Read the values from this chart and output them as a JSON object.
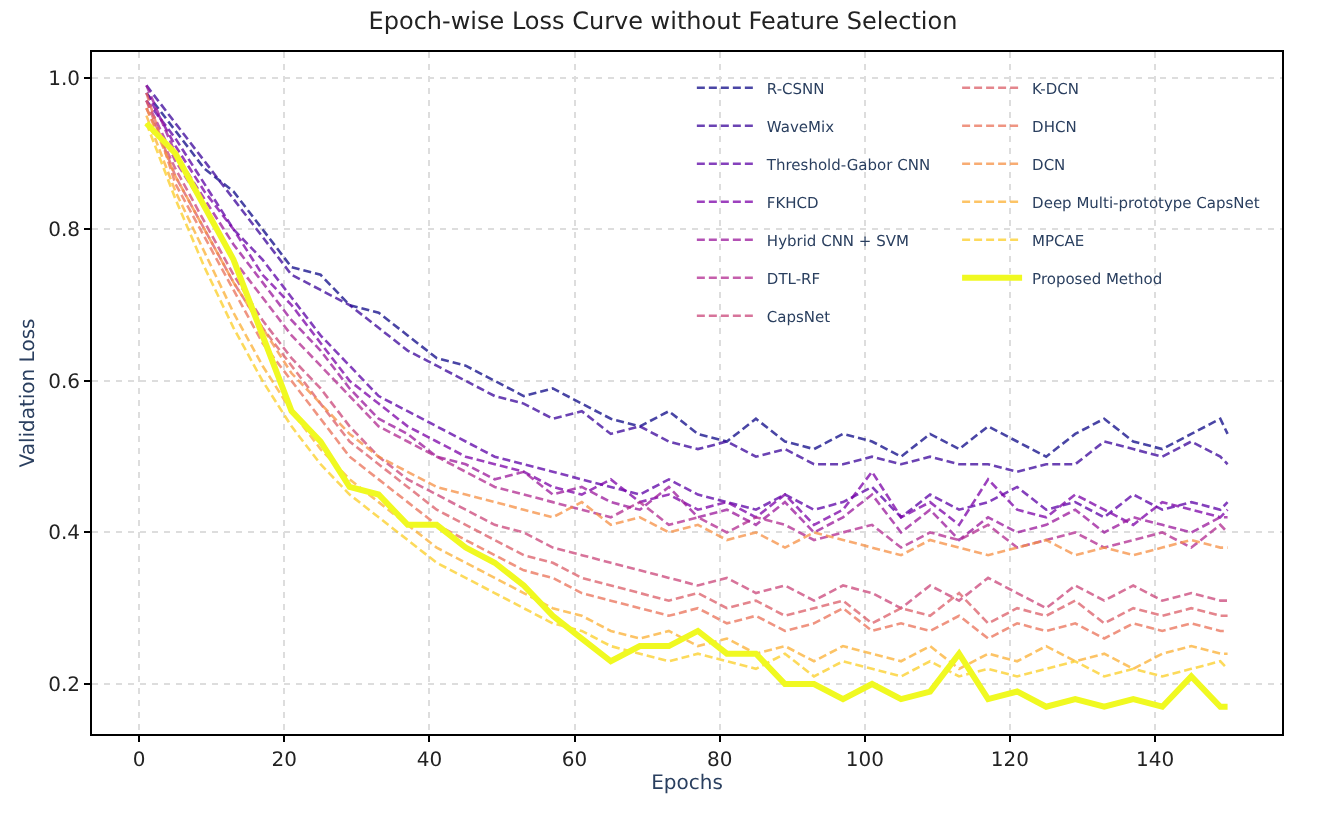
{
  "chart_data": {
    "type": "line",
    "title": "Epoch-wise Loss Curve without Feature Selection",
    "xlabel": "Epochs",
    "ylabel": "Validation Loss",
    "x": [
      1,
      5,
      9,
      13,
      17,
      21,
      25,
      29,
      33,
      37,
      41,
      45,
      49,
      53,
      57,
      61,
      65,
      69,
      73,
      77,
      81,
      85,
      89,
      93,
      97,
      101,
      105,
      109,
      113,
      117,
      121,
      125,
      129,
      133,
      137,
      141,
      145,
      149,
      150
    ],
    "xlim": [
      -6.5,
      157.5
    ],
    "ylim": [
      0.134,
      1.034
    ],
    "xticks": [
      0,
      20,
      40,
      60,
      80,
      100,
      120,
      140
    ],
    "yticks": [
      0.2,
      0.4,
      0.6,
      0.8,
      {
        "value": 1.0,
        "label": "1.0"
      }
    ],
    "grid": true,
    "legend": "top right",
    "series": [
      {
        "name": "R-CSNN",
        "color": "#0d0887",
        "line_style": "dashed",
        "values": [
          0.98,
          0.93,
          0.88,
          0.85,
          0.8,
          0.75,
          0.74,
          0.7,
          0.69,
          0.66,
          0.63,
          0.62,
          0.6,
          0.58,
          0.59,
          0.57,
          0.55,
          0.54,
          0.56,
          0.53,
          0.52,
          0.55,
          0.52,
          0.51,
          0.53,
          0.52,
          0.5,
          0.53,
          0.51,
          0.54,
          0.52,
          0.5,
          0.53,
          0.55,
          0.52,
          0.51,
          0.53,
          0.55,
          0.53
        ]
      },
      {
        "name": "WaveMix",
        "color": "#3a049a",
        "line_style": "dashed",
        "values": [
          0.99,
          0.94,
          0.89,
          0.84,
          0.79,
          0.74,
          0.72,
          0.7,
          0.67,
          0.64,
          0.62,
          0.6,
          0.58,
          0.57,
          0.55,
          0.56,
          0.53,
          0.54,
          0.52,
          0.51,
          0.52,
          0.5,
          0.51,
          0.49,
          0.49,
          0.5,
          0.49,
          0.5,
          0.49,
          0.49,
          0.48,
          0.49,
          0.49,
          0.52,
          0.51,
          0.5,
          0.52,
          0.5,
          0.49
        ]
      },
      {
        "name": "Threshold-Gabor CNN",
        "color": "#5c01a6",
        "line_style": "dashed",
        "values": [
          0.97,
          0.92,
          0.86,
          0.8,
          0.76,
          0.71,
          0.66,
          0.62,
          0.58,
          0.56,
          0.54,
          0.52,
          0.5,
          0.49,
          0.48,
          0.47,
          0.46,
          0.45,
          0.47,
          0.45,
          0.44,
          0.43,
          0.45,
          0.43,
          0.44,
          0.46,
          0.42,
          0.45,
          0.43,
          0.44,
          0.46,
          0.43,
          0.44,
          0.42,
          0.45,
          0.43,
          0.44,
          0.43,
          0.44
        ]
      },
      {
        "name": "FKHCD",
        "color": "#7c02a8",
        "line_style": "dashed",
        "values": [
          0.98,
          0.91,
          0.85,
          0.8,
          0.74,
          0.7,
          0.65,
          0.6,
          0.57,
          0.54,
          0.52,
          0.5,
          0.49,
          0.48,
          0.46,
          0.45,
          0.47,
          0.44,
          0.45,
          0.43,
          0.44,
          0.42,
          0.45,
          0.41,
          0.43,
          0.48,
          0.42,
          0.44,
          0.41,
          0.47,
          0.43,
          0.42,
          0.45,
          0.43,
          0.41,
          0.44,
          0.43,
          0.42,
          0.43
        ]
      },
      {
        "name": "Hybrid CNN + SVM",
        "color": "#9a179b",
        "line_style": "dashed",
        "values": [
          0.99,
          0.9,
          0.84,
          0.78,
          0.73,
          0.68,
          0.64,
          0.59,
          0.55,
          0.53,
          0.5,
          0.49,
          0.47,
          0.48,
          0.45,
          0.46,
          0.44,
          0.43,
          0.46,
          0.42,
          0.43,
          0.41,
          0.44,
          0.4,
          0.42,
          0.45,
          0.4,
          0.43,
          0.39,
          0.42,
          0.4,
          0.41,
          0.43,
          0.4,
          0.42,
          0.41,
          0.4,
          0.42,
          0.42
        ]
      },
      {
        "name": "DTL-RF",
        "color": "#b12a90",
        "line_style": "dashed",
        "values": [
          0.97,
          0.89,
          0.83,
          0.76,
          0.71,
          0.66,
          0.62,
          0.58,
          0.54,
          0.52,
          0.5,
          0.48,
          0.46,
          0.45,
          0.44,
          0.43,
          0.42,
          0.44,
          0.41,
          0.42,
          0.4,
          0.42,
          0.41,
          0.39,
          0.4,
          0.41,
          0.38,
          0.4,
          0.39,
          0.41,
          0.38,
          0.39,
          0.4,
          0.38,
          0.39,
          0.4,
          0.38,
          0.41,
          0.4
        ]
      },
      {
        "name": "CapsNet",
        "color": "#ca4579",
        "line_style": "dashed",
        "values": [
          0.96,
          0.88,
          0.81,
          0.74,
          0.68,
          0.63,
          0.59,
          0.54,
          0.5,
          0.47,
          0.45,
          0.43,
          0.41,
          0.4,
          0.38,
          0.37,
          0.36,
          0.35,
          0.34,
          0.33,
          0.34,
          0.32,
          0.33,
          0.31,
          0.33,
          0.32,
          0.3,
          0.33,
          0.31,
          0.34,
          0.32,
          0.3,
          0.33,
          0.31,
          0.33,
          0.31,
          0.32,
          0.31,
          0.31
        ]
      },
      {
        "name": "K-DCN",
        "color": "#db5d67",
        "line_style": "dashed",
        "values": [
          0.97,
          0.87,
          0.8,
          0.73,
          0.67,
          0.62,
          0.57,
          0.52,
          0.49,
          0.46,
          0.43,
          0.41,
          0.39,
          0.37,
          0.36,
          0.34,
          0.33,
          0.32,
          0.31,
          0.32,
          0.3,
          0.31,
          0.29,
          0.3,
          0.31,
          0.28,
          0.3,
          0.29,
          0.32,
          0.28,
          0.3,
          0.29,
          0.31,
          0.28,
          0.3,
          0.29,
          0.3,
          0.29,
          0.29
        ]
      },
      {
        "name": "DHCN",
        "color": "#ea7158",
        "line_style": "dashed",
        "values": [
          0.98,
          0.86,
          0.79,
          0.72,
          0.65,
          0.6,
          0.55,
          0.5,
          0.47,
          0.44,
          0.41,
          0.39,
          0.37,
          0.35,
          0.34,
          0.32,
          0.31,
          0.3,
          0.29,
          0.3,
          0.28,
          0.29,
          0.27,
          0.28,
          0.3,
          0.27,
          0.28,
          0.27,
          0.29,
          0.26,
          0.28,
          0.27,
          0.28,
          0.26,
          0.28,
          0.27,
          0.28,
          0.27,
          0.27
        ]
      },
      {
        "name": "DCN",
        "color": "#f69044",
        "line_style": "dashed",
        "values": [
          0.96,
          0.87,
          0.8,
          0.73,
          0.67,
          0.61,
          0.57,
          0.53,
          0.5,
          0.48,
          0.46,
          0.45,
          0.44,
          0.43,
          0.42,
          0.44,
          0.41,
          0.42,
          0.4,
          0.41,
          0.39,
          0.4,
          0.38,
          0.4,
          0.39,
          0.38,
          0.37,
          0.39,
          0.38,
          0.37,
          0.38,
          0.39,
          0.37,
          0.38,
          0.37,
          0.38,
          0.39,
          0.38,
          0.38
        ]
      },
      {
        "name": "Deep Multi-prototype CapsNet",
        "color": "#fcb033",
        "line_style": "dashed",
        "values": [
          0.95,
          0.85,
          0.77,
          0.69,
          0.62,
          0.56,
          0.51,
          0.47,
          0.44,
          0.41,
          0.38,
          0.36,
          0.34,
          0.32,
          0.3,
          0.29,
          0.27,
          0.26,
          0.27,
          0.25,
          0.26,
          0.24,
          0.25,
          0.23,
          0.25,
          0.24,
          0.23,
          0.25,
          0.22,
          0.24,
          0.23,
          0.25,
          0.23,
          0.24,
          0.22,
          0.24,
          0.25,
          0.24,
          0.24
        ]
      },
      {
        "name": "MPCAE",
        "color": "#fcce25",
        "line_style": "dashed",
        "values": [
          0.94,
          0.84,
          0.75,
          0.67,
          0.6,
          0.54,
          0.49,
          0.45,
          0.42,
          0.39,
          0.36,
          0.34,
          0.32,
          0.3,
          0.28,
          0.27,
          0.25,
          0.24,
          0.23,
          0.24,
          0.23,
          0.22,
          0.24,
          0.21,
          0.23,
          0.22,
          0.21,
          0.23,
          0.21,
          0.22,
          0.21,
          0.22,
          0.23,
          0.21,
          0.22,
          0.21,
          0.22,
          0.23,
          0.22
        ]
      },
      {
        "name": "Proposed Method",
        "color": "#f0f921",
        "line_style": "solid",
        "values": [
          0.94,
          0.9,
          0.83,
          0.76,
          0.66,
          0.56,
          0.52,
          0.46,
          0.45,
          0.41,
          0.41,
          0.38,
          0.36,
          0.33,
          0.29,
          0.26,
          0.23,
          0.25,
          0.25,
          0.27,
          0.24,
          0.24,
          0.2,
          0.2,
          0.18,
          0.2,
          0.18,
          0.19,
          0.24,
          0.18,
          0.19,
          0.17,
          0.18,
          0.17,
          0.18,
          0.17,
          0.21,
          0.17,
          0.17
        ]
      }
    ]
  }
}
